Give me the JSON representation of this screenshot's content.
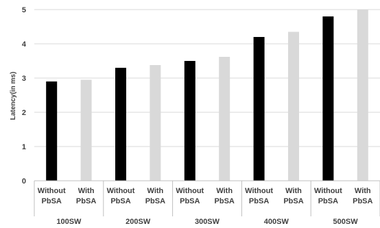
{
  "chart_data": {
    "type": "bar",
    "title": "",
    "xlabel": "",
    "ylabel": "Latency(in ms)",
    "ylim": [
      0,
      5
    ],
    "yticks": [
      0,
      1,
      2,
      3,
      4,
      5
    ],
    "grid": "horizontal",
    "legend": "none",
    "groups": [
      "100SW",
      "200SW",
      "300SW",
      "400SW",
      "500SW"
    ],
    "subcategories": [
      [
        "Without",
        "PbSA"
      ],
      [
        "With",
        "PbSA"
      ]
    ],
    "series": [
      {
        "values": [
          2.9,
          3.3,
          3.5,
          4.2,
          4.8
        ],
        "color": "#000000"
      },
      {
        "values": [
          2.95,
          3.38,
          3.62,
          4.35,
          5.0
        ],
        "color": "#d9d9d9"
      }
    ]
  }
}
